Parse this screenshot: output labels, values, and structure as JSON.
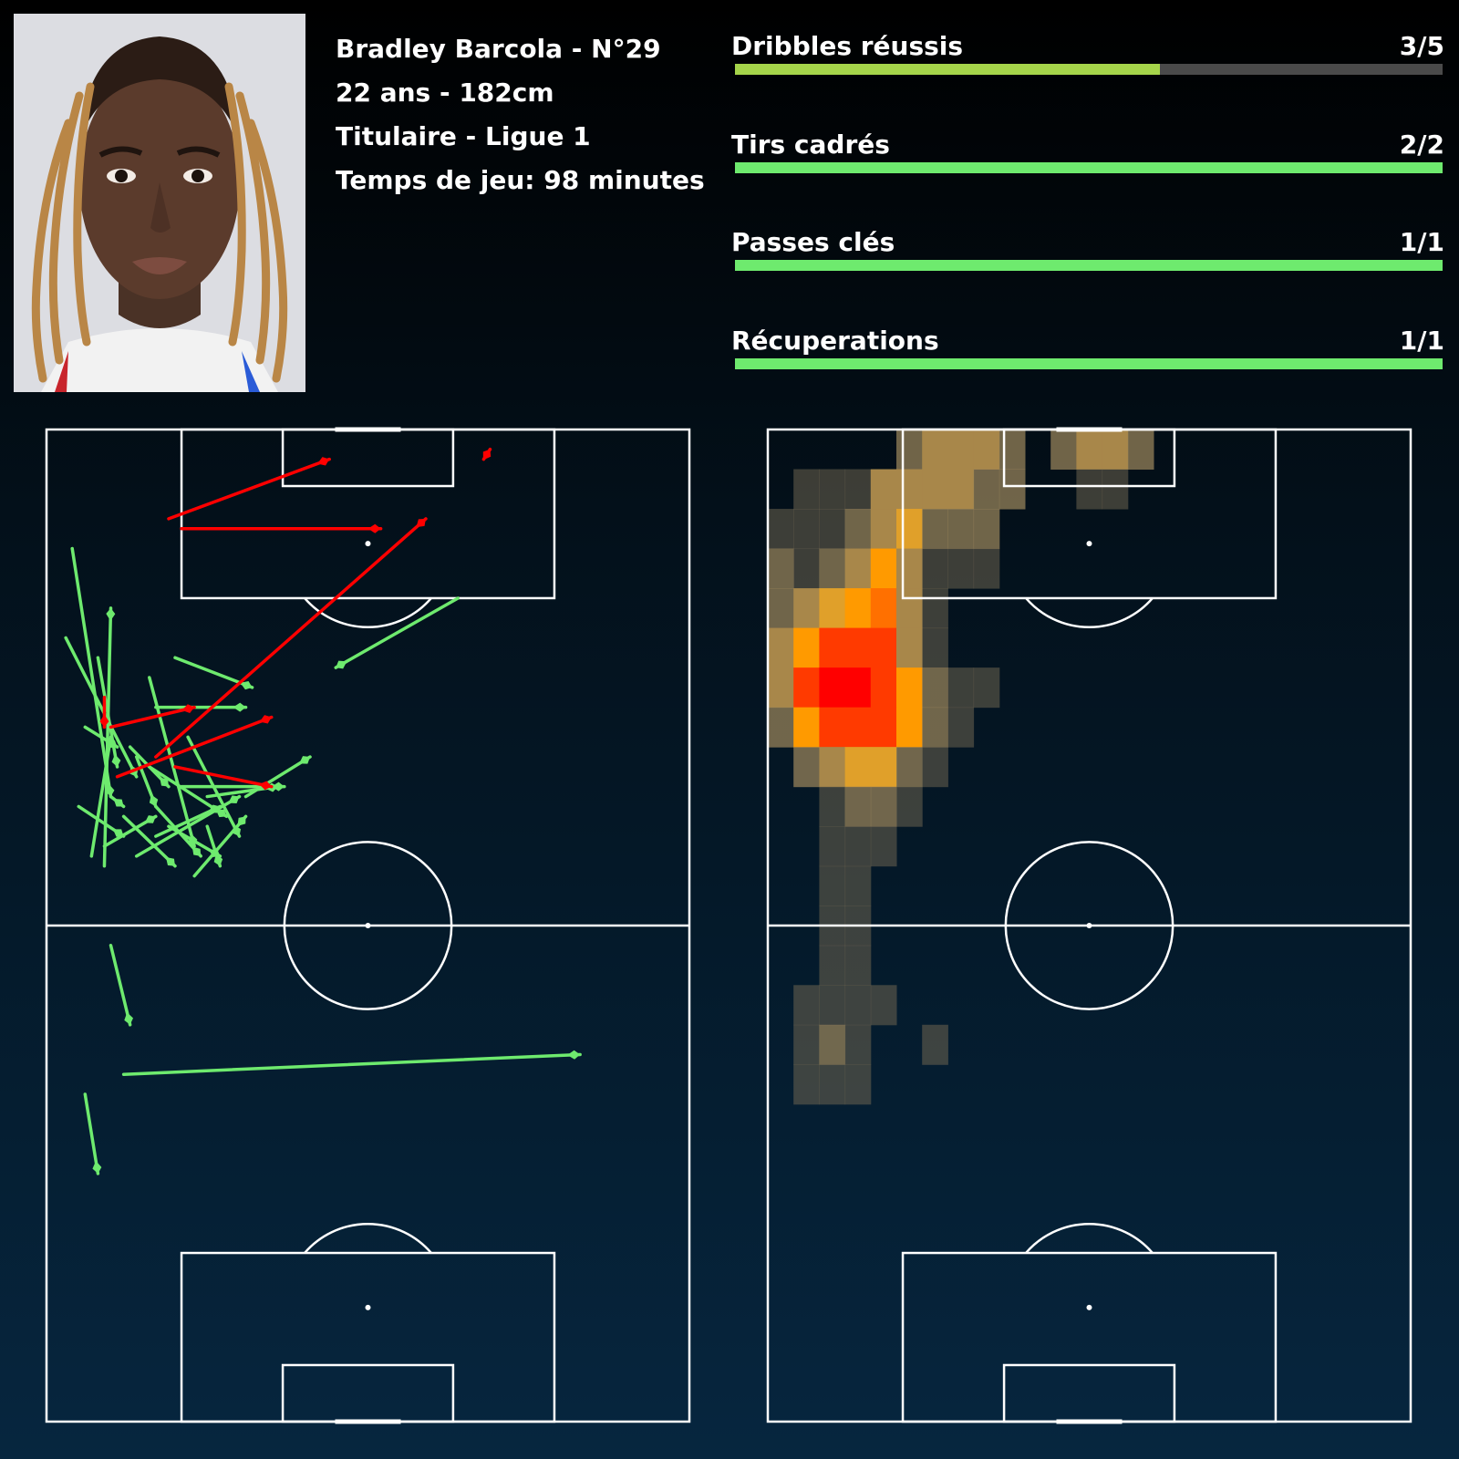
{
  "player": {
    "line1": "Bradley Barcola - N°29",
    "line2": "22 ans - 182cm",
    "line3": "Titulaire - Ligue 1",
    "line4": "Temps de jeu: 98 minutes",
    "photo_icon": "player-portrait"
  },
  "stats": [
    {
      "label": "Dribbles réussis",
      "value_text": "3/5",
      "success": 3,
      "total": 5,
      "fill_color": "#a5d44a"
    },
    {
      "label": "Tirs cadrés",
      "value_text": "2/2",
      "success": 2,
      "total": 2,
      "fill_color": "#6eea6e"
    },
    {
      "label": "Passes clés",
      "value_text": "1/1",
      "success": 1,
      "total": 1,
      "fill_color": "#6eea6e"
    },
    {
      "label": "Récuperations",
      "value_text": "1/1",
      "success": 1,
      "total": 1,
      "fill_color": "#6eea6e"
    }
  ],
  "colors": {
    "pass_success": "#6eea6e",
    "pass_failed": "#ff0000",
    "pitch_lines": "#ffffff",
    "track": "#4a4a4a"
  },
  "chart_data": [
    {
      "type": "scatter",
      "chart": "pass-map",
      "pitch": {
        "length": 100,
        "width": 100,
        "orientation": "vertical",
        "attacking": "top"
      },
      "passes_success": [
        [
          4,
          88,
          10,
          63
        ],
        [
          3,
          79,
          14,
          65
        ],
        [
          7,
          57,
          10,
          69
        ],
        [
          10,
          63,
          12,
          62
        ],
        [
          6,
          70,
          11,
          68
        ],
        [
          14,
          67,
          17,
          62
        ],
        [
          16,
          75,
          23,
          58
        ],
        [
          20,
          77,
          32,
          74
        ],
        [
          17,
          72,
          31,
          72
        ],
        [
          13,
          68,
          19,
          64
        ],
        [
          12,
          61,
          20,
          56
        ],
        [
          5,
          62,
          12,
          59
        ],
        [
          9,
          58,
          17,
          61
        ],
        [
          16,
          66,
          28,
          61
        ],
        [
          22,
          69,
          30,
          59
        ],
        [
          14,
          57,
          30,
          63
        ],
        [
          19,
          60,
          27,
          57
        ],
        [
          25,
          60,
          27,
          56
        ],
        [
          31,
          63,
          41,
          67
        ],
        [
          25,
          63,
          36,
          64
        ],
        [
          21,
          64,
          37,
          64
        ],
        [
          17,
          59,
          27,
          62
        ],
        [
          23,
          55,
          31,
          61
        ],
        [
          17,
          62,
          24,
          57
        ],
        [
          8,
          77,
          11,
          66
        ],
        [
          9,
          56,
          10,
          82
        ],
        [
          10,
          48,
          13,
          40
        ],
        [
          6,
          33,
          8,
          25
        ],
        [
          12,
          35,
          83,
          37
        ],
        [
          64,
          83,
          45,
          76
        ]
      ],
      "passes_failed": [
        [
          19,
          91,
          44,
          97
        ],
        [
          21,
          90,
          52,
          90
        ],
        [
          17,
          67,
          59,
          91
        ],
        [
          11,
          65,
          35,
          71
        ],
        [
          10,
          70,
          23,
          72
        ],
        [
          9,
          73,
          9,
          70
        ],
        [
          20,
          66,
          35,
          64
        ],
        [
          68,
          97,
          69,
          98
        ]
      ]
    },
    {
      "type": "heatmap",
      "chart": "position-heatmap",
      "pitch": {
        "length": 100,
        "width": 100,
        "orientation": "vertical",
        "attacking": "top"
      },
      "grid": {
        "cols": 25,
        "rows": 25
      },
      "cells": [
        [
          5,
          0,
          0.3
        ],
        [
          6,
          0,
          0.55
        ],
        [
          7,
          0,
          0.55
        ],
        [
          8,
          0,
          0.55
        ],
        [
          9,
          0,
          0.3
        ],
        [
          11,
          0,
          0.3
        ],
        [
          12,
          0,
          0.5
        ],
        [
          13,
          0,
          0.5
        ],
        [
          14,
          0,
          0.3
        ],
        [
          1,
          1,
          0.2
        ],
        [
          2,
          1,
          0.2
        ],
        [
          3,
          1,
          0.2
        ],
        [
          4,
          1,
          0.5
        ],
        [
          5,
          1,
          0.6
        ],
        [
          6,
          1,
          0.6
        ],
        [
          7,
          1,
          0.6
        ],
        [
          8,
          1,
          0.3
        ],
        [
          9,
          1,
          0.3
        ],
        [
          12,
          1,
          0.25
        ],
        [
          13,
          1,
          0.25
        ],
        [
          0,
          2,
          0.2
        ],
        [
          1,
          2,
          0.2
        ],
        [
          2,
          2,
          0.2
        ],
        [
          3,
          2,
          0.45
        ],
        [
          4,
          2,
          0.55
        ],
        [
          5,
          2,
          0.7
        ],
        [
          6,
          2,
          0.45
        ],
        [
          7,
          2,
          0.45
        ],
        [
          8,
          2,
          0.3
        ],
        [
          0,
          3,
          0.4
        ],
        [
          1,
          3,
          0.2
        ],
        [
          2,
          3,
          0.45
        ],
        [
          3,
          3,
          0.55
        ],
        [
          4,
          3,
          0.8
        ],
        [
          5,
          3,
          0.55
        ],
        [
          6,
          3,
          0.25
        ],
        [
          7,
          3,
          0.25
        ],
        [
          8,
          3,
          0.25
        ],
        [
          0,
          4,
          0.45
        ],
        [
          1,
          4,
          0.55
        ],
        [
          2,
          4,
          0.65
        ],
        [
          3,
          4,
          0.75
        ],
        [
          4,
          4,
          0.88
        ],
        [
          5,
          4,
          0.55
        ],
        [
          6,
          4,
          0.2
        ],
        [
          0,
          5,
          0.55
        ],
        [
          1,
          5,
          0.78
        ],
        [
          2,
          5,
          0.93
        ],
        [
          3,
          5,
          0.93
        ],
        [
          4,
          5,
          0.93
        ],
        [
          5,
          5,
          0.6
        ],
        [
          6,
          5,
          0.2
        ],
        [
          0,
          6,
          0.55
        ],
        [
          1,
          6,
          0.93
        ],
        [
          2,
          6,
          1.0
        ],
        [
          3,
          6,
          1.0
        ],
        [
          4,
          6,
          0.95
        ],
        [
          5,
          6,
          0.78
        ],
        [
          6,
          6,
          0.4
        ],
        [
          7,
          6,
          0.25
        ],
        [
          8,
          6,
          0.25
        ],
        [
          0,
          7,
          0.45
        ],
        [
          1,
          7,
          0.8
        ],
        [
          2,
          7,
          0.9
        ],
        [
          3,
          7,
          0.95
        ],
        [
          4,
          7,
          0.92
        ],
        [
          5,
          7,
          0.78
        ],
        [
          6,
          7,
          0.45
        ],
        [
          7,
          7,
          0.25
        ],
        [
          1,
          8,
          0.4
        ],
        [
          2,
          8,
          0.55
        ],
        [
          3,
          8,
          0.7
        ],
        [
          4,
          8,
          0.7
        ],
        [
          5,
          8,
          0.45
        ],
        [
          6,
          8,
          0.25
        ],
        [
          2,
          9,
          0.25
        ],
        [
          3,
          9,
          0.45
        ],
        [
          4,
          9,
          0.45
        ],
        [
          5,
          9,
          0.25
        ],
        [
          2,
          10,
          0.2
        ],
        [
          3,
          10,
          0.2
        ],
        [
          4,
          10,
          0.2
        ],
        [
          2,
          11,
          0.2
        ],
        [
          3,
          11,
          0.2
        ],
        [
          2,
          12,
          0.2
        ],
        [
          3,
          12,
          0.2
        ],
        [
          2,
          13,
          0.2
        ],
        [
          3,
          13,
          0.2
        ],
        [
          1,
          14,
          0.2
        ],
        [
          2,
          14,
          0.2
        ],
        [
          3,
          14,
          0.2
        ],
        [
          4,
          14,
          0.2
        ],
        [
          1,
          15,
          0.2
        ],
        [
          2,
          15,
          0.45
        ],
        [
          3,
          15,
          0.2
        ],
        [
          6,
          15,
          0.2
        ],
        [
          1,
          16,
          0.2
        ],
        [
          2,
          16,
          0.2
        ],
        [
          3,
          16,
          0.2
        ]
      ]
    }
  ]
}
